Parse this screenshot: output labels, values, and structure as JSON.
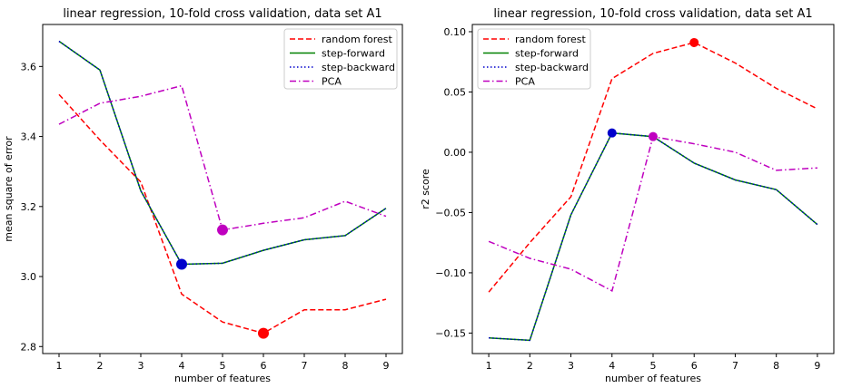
{
  "chart_data": [
    {
      "type": "line",
      "title": "linear regression, 10-fold cross validation, data set A1",
      "xlabel": "number of features",
      "ylabel": "mean square of error",
      "x": [
        1,
        2,
        3,
        4,
        5,
        6,
        7,
        8,
        9
      ],
      "xticks": [
        "1",
        "2",
        "3",
        "4",
        "5",
        "6",
        "7",
        "8",
        "9"
      ],
      "xlim": [
        0.6,
        9.4
      ],
      "ylim": [
        2.78,
        3.72
      ],
      "yticks": [
        2.8,
        3.0,
        3.2,
        3.4,
        3.6
      ],
      "ytick_labels": [
        "2.8",
        "3.0",
        "3.2",
        "3.4",
        "3.6"
      ],
      "legend_position": "top-right",
      "series": [
        {
          "name": "random forest",
          "color": "#ff0000",
          "style": "dashed",
          "values": [
            3.52,
            3.39,
            3.27,
            2.95,
            2.87,
            2.838,
            2.905,
            2.905,
            2.935
          ]
        },
        {
          "name": "step-forward",
          "color": "#008000",
          "style": "solid",
          "values": [
            3.672,
            3.59,
            3.245,
            3.035,
            3.038,
            3.075,
            3.105,
            3.117,
            3.195
          ]
        },
        {
          "name": "step-backward",
          "color": "#0000cc",
          "style": "dotted",
          "values": [
            3.672,
            3.59,
            3.245,
            3.035,
            3.038,
            3.075,
            3.105,
            3.117,
            3.195
          ]
        },
        {
          "name": "PCA",
          "color": "#bf00bf",
          "style": "dashdot",
          "values": [
            3.435,
            3.495,
            3.515,
            3.545,
            3.133,
            3.152,
            3.168,
            3.215,
            3.172
          ]
        }
      ],
      "markers": [
        {
          "x": 6,
          "y": 2.838,
          "color": "#ff0000"
        },
        {
          "x": 4,
          "y": 3.035,
          "color": "#0000cc"
        },
        {
          "x": 5,
          "y": 3.133,
          "color": "#bf00bf"
        }
      ]
    },
    {
      "type": "line",
      "title": "linear regression, 10-fold cross validation, data set A1",
      "xlabel": "number of features",
      "ylabel": "r2 score",
      "x": [
        1,
        2,
        3,
        4,
        5,
        6,
        7,
        8,
        9
      ],
      "xticks": [
        "1",
        "2",
        "3",
        "4",
        "5",
        "6",
        "7",
        "8",
        "9"
      ],
      "xlim": [
        0.6,
        9.4
      ],
      "ylim": [
        -0.167,
        0.106
      ],
      "yticks": [
        -0.15,
        -0.1,
        -0.05,
        0.0,
        0.05,
        0.1
      ],
      "ytick_labels": [
        "−0.15",
        "−0.10",
        "−0.05",
        "0.00",
        "0.05",
        "0.10"
      ],
      "legend_position": "top-left",
      "series": [
        {
          "name": "random forest",
          "color": "#ff0000",
          "style": "dashed",
          "values": [
            -0.116,
            -0.075,
            -0.037,
            0.061,
            0.082,
            0.091,
            0.074,
            0.053,
            0.036
          ]
        },
        {
          "name": "step-forward",
          "color": "#008000",
          "style": "solid",
          "values": [
            -0.154,
            -0.156,
            -0.052,
            0.016,
            0.013,
            -0.009,
            -0.023,
            -0.031,
            -0.06
          ]
        },
        {
          "name": "step-backward",
          "color": "#0000cc",
          "style": "dotted",
          "values": [
            -0.154,
            -0.156,
            -0.052,
            0.016,
            0.013,
            -0.009,
            -0.023,
            -0.031,
            -0.06
          ]
        },
        {
          "name": "PCA",
          "color": "#bf00bf",
          "style": "dashdot",
          "values": [
            -0.074,
            -0.088,
            -0.097,
            -0.115,
            0.013,
            0.007,
            0.0,
            -0.015,
            -0.013
          ]
        }
      ],
      "markers": [
        {
          "x": 6,
          "y": 0.091,
          "color": "#ff0000"
        },
        {
          "x": 4,
          "y": 0.016,
          "color": "#0000cc"
        },
        {
          "x": 5,
          "y": 0.013,
          "color": "#bf00bf"
        }
      ]
    }
  ]
}
